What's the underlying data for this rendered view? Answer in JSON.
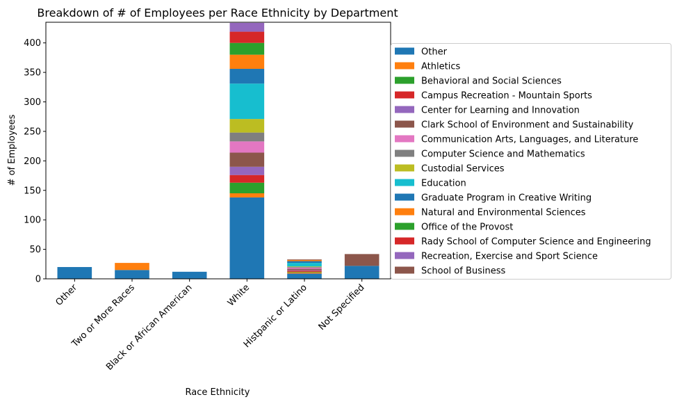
{
  "chart_data": {
    "type": "bar",
    "stacked": true,
    "title": "Breakdown of # of Employees per Race Ethnicity by Department",
    "xlabel": "Race Ethnicity",
    "ylabel": "# of Employees",
    "ylim": [
      0,
      435
    ],
    "yticks": [
      0,
      50,
      100,
      150,
      200,
      250,
      300,
      350,
      400
    ],
    "categories": [
      "Other",
      "Two or More Races",
      "Black or African American",
      "White",
      "Histpanic or Latino",
      "Not Specified"
    ],
    "legend_position": "right",
    "series": [
      {
        "name": "Other",
        "color": "#1f77b4",
        "values": [
          20,
          15,
          12,
          138,
          9,
          22
        ]
      },
      {
        "name": "Athletics",
        "color": "#ff7f0e",
        "values": [
          0,
          12,
          0,
          7,
          2,
          0
        ]
      },
      {
        "name": "Behavioral and Social Sciences",
        "color": "#2ca02c",
        "values": [
          0,
          0,
          0,
          18,
          1,
          0
        ]
      },
      {
        "name": "Campus Recreation - Mountain Sports",
        "color": "#d62728",
        "values": [
          0,
          0,
          0,
          13,
          2,
          0
        ]
      },
      {
        "name": "Center for Learning and Innovation",
        "color": "#9467bd",
        "values": [
          0,
          0,
          0,
          14,
          1,
          0
        ]
      },
      {
        "name": "Clark School of Environment and Sustainability",
        "color": "#8c564b",
        "values": [
          0,
          0,
          0,
          24,
          2,
          0
        ]
      },
      {
        "name": "Communication Arts, Languages, and Literature",
        "color": "#e377c2",
        "values": [
          0,
          0,
          0,
          19,
          2,
          0
        ]
      },
      {
        "name": "Computer Science and Mathematics",
        "color": "#7f7f7f",
        "values": [
          0,
          0,
          0,
          15,
          1,
          0
        ]
      },
      {
        "name": "Custodial Services",
        "color": "#bcbd22",
        "values": [
          0,
          0,
          0,
          23,
          1,
          0
        ]
      },
      {
        "name": "Education",
        "color": "#17becf",
        "values": [
          0,
          0,
          0,
          60,
          6,
          0
        ]
      },
      {
        "name": "Graduate Program in Creative Writing",
        "color": "#1f77b4",
        "values": [
          0,
          0,
          0,
          25,
          3,
          0
        ]
      },
      {
        "name": "Natural and Environmental Sciences",
        "color": "#ff7f0e",
        "values": [
          0,
          0,
          0,
          24,
          2,
          0
        ]
      },
      {
        "name": "Office of the Provost",
        "color": "#2ca02c",
        "values": [
          0,
          0,
          0,
          20,
          0,
          0
        ]
      },
      {
        "name": "Rady School of Computer Science and Engineering",
        "color": "#d62728",
        "values": [
          0,
          0,
          0,
          19,
          0,
          0
        ]
      },
      {
        "name": "Recreation, Exercise and Sport Science",
        "color": "#9467bd",
        "values": [
          0,
          0,
          0,
          15,
          0,
          0
        ]
      },
      {
        "name": "School of Business",
        "color": "#8c564b",
        "values": [
          0,
          0,
          0,
          0,
          1,
          20
        ]
      }
    ]
  }
}
